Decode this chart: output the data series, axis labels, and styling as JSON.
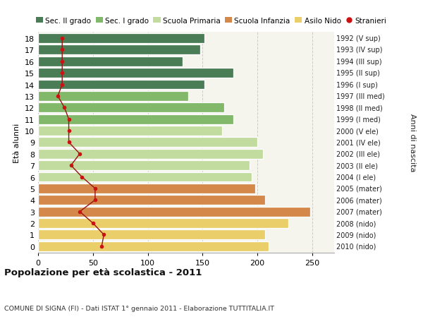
{
  "ages": [
    18,
    17,
    16,
    15,
    14,
    13,
    12,
    11,
    10,
    9,
    8,
    7,
    6,
    5,
    4,
    3,
    2,
    1,
    0
  ],
  "years": [
    "1992 (V sup)",
    "1993 (IV sup)",
    "1994 (III sup)",
    "1995 (II sup)",
    "1996 (I sup)",
    "1997 (III med)",
    "1998 (II med)",
    "1999 (I med)",
    "2000 (V ele)",
    "2001 (IV ele)",
    "2002 (III ele)",
    "2003 (II ele)",
    "2004 (I ele)",
    "2005 (mater)",
    "2006 (mater)",
    "2007 (mater)",
    "2008 (nido)",
    "2009 (nido)",
    "2010 (nido)"
  ],
  "bar_values": [
    152,
    148,
    132,
    178,
    152,
    137,
    170,
    178,
    168,
    200,
    205,
    193,
    195,
    198,
    207,
    248,
    228,
    207,
    210
  ],
  "bar_colors": [
    "#4a7c55",
    "#4a7c55",
    "#4a7c55",
    "#4a7c55",
    "#4a7c55",
    "#82b86a",
    "#82b86a",
    "#82b86a",
    "#c2dca0",
    "#c2dca0",
    "#c2dca0",
    "#c2dca0",
    "#c2dca0",
    "#d4894a",
    "#d4894a",
    "#d4894a",
    "#eace6a",
    "#eace6a",
    "#eace6a"
  ],
  "stranieri": [
    22,
    22,
    22,
    22,
    22,
    18,
    24,
    28,
    28,
    28,
    38,
    30,
    40,
    52,
    52,
    38,
    50,
    60,
    58
  ],
  "legend_labels": [
    "Sec. II grado",
    "Sec. I grado",
    "Scuola Primaria",
    "Scuola Infanzia",
    "Asilo Nido",
    "Stranieri"
  ],
  "legend_colors": [
    "#4a7c55",
    "#82b86a",
    "#c2dca0",
    "#d4894a",
    "#eace6a",
    "#cc1111"
  ],
  "ylabel_left": "Età alunni",
  "ylabel_right": "Anni di nascita",
  "title": "Popolazione per età scolastica - 2011",
  "subtitle": "COMUNE DI SIGNA (FI) - Dati ISTAT 1° gennaio 2011 - Elaborazione TUTTITALIA.IT",
  "xlim": [
    0,
    270
  ],
  "xticks": [
    0,
    50,
    100,
    150,
    200,
    250
  ],
  "bg_color": "#ffffff",
  "bar_edge_color": "#ffffff",
  "plot_bg": "#f5f5ee",
  "grid_color": "#cccccc",
  "stranieri_color": "#cc1111",
  "stranieri_line_color": "#991111"
}
